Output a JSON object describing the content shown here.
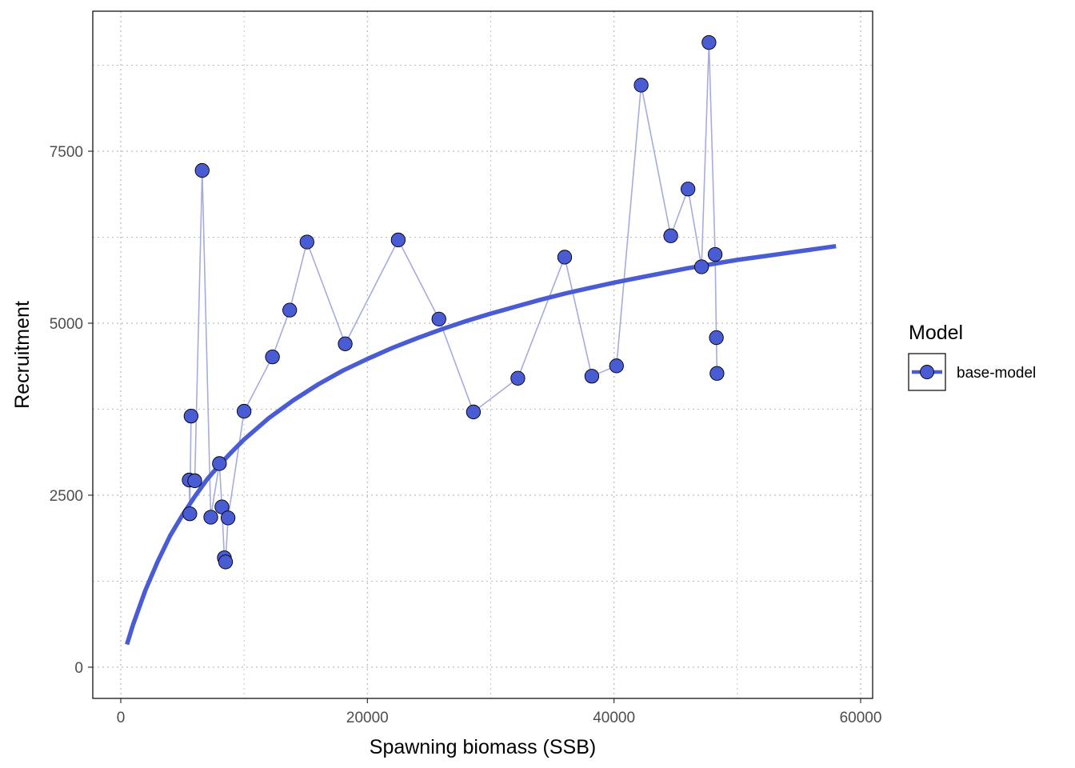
{
  "chart_data": {
    "type": "scatter",
    "title": "",
    "xlabel": "Spawning biomass (SSB)",
    "ylabel": "Recruitment",
    "xlim": [
      -2000,
      60500
    ],
    "ylim": [
      -450,
      9650
    ],
    "x_ticks": [
      0,
      20000,
      40000,
      60000
    ],
    "y_ticks": [
      0,
      2500,
      5000,
      7500
    ],
    "x_tick_labels": [
      "0",
      "20000",
      "40000",
      "60000"
    ],
    "y_tick_labels": [
      "0",
      "2500",
      "5000",
      "7500"
    ],
    "grid": true,
    "grid_style": "dotted",
    "legend": {
      "title": "Model",
      "position": "right",
      "entries": [
        "base-model"
      ]
    },
    "colors": {
      "series": "#4A5CD3",
      "connector": "#A5ACDD",
      "point_stroke": "#000000",
      "grid": "#BDBDBD"
    },
    "series": [
      {
        "name": "base-model",
        "observed": {
          "x": [
            5700,
            5600,
            5550,
            6000,
            6600,
            7300,
            8000,
            8200,
            8400,
            8500,
            8700,
            10000,
            12300,
            13700,
            15100,
            18200,
            22500,
            25800,
            28600,
            32200,
            36000,
            38200,
            40200,
            42200,
            44600,
            46000,
            47100,
            47700,
            48200,
            48300,
            48350
          ],
          "y": [
            3650,
            2230,
            2720,
            2710,
            7220,
            2180,
            2960,
            2330,
            1590,
            1530,
            2170,
            3720,
            4510,
            5190,
            6180,
            4700,
            6210,
            5060,
            3710,
            4200,
            5960,
            4230,
            4380,
            8460,
            6270,
            6950,
            5820,
            9080,
            6000,
            4790,
            4270
          ]
        },
        "fit_curve": {
          "x": [
            500,
            1000,
            2000,
            3000,
            4000,
            5000,
            6000,
            7000,
            8000,
            9000,
            10000,
            12000,
            14000,
            16000,
            18000,
            20000,
            22000,
            24000,
            26000,
            28000,
            30000,
            32000,
            34000,
            36000,
            38000,
            40000,
            42000,
            44000,
            46000,
            48000,
            50000,
            52000,
            54000,
            56000,
            58000
          ],
          "y": [
            330,
            620,
            1120,
            1540,
            1910,
            2210,
            2480,
            2730,
            2940,
            3130,
            3310,
            3620,
            3880,
            4110,
            4310,
            4480,
            4640,
            4780,
            4910,
            5030,
            5140,
            5240,
            5340,
            5430,
            5510,
            5590,
            5660,
            5730,
            5800,
            5860,
            5920,
            5970,
            6020,
            6070,
            6120
          ]
        }
      }
    ]
  }
}
